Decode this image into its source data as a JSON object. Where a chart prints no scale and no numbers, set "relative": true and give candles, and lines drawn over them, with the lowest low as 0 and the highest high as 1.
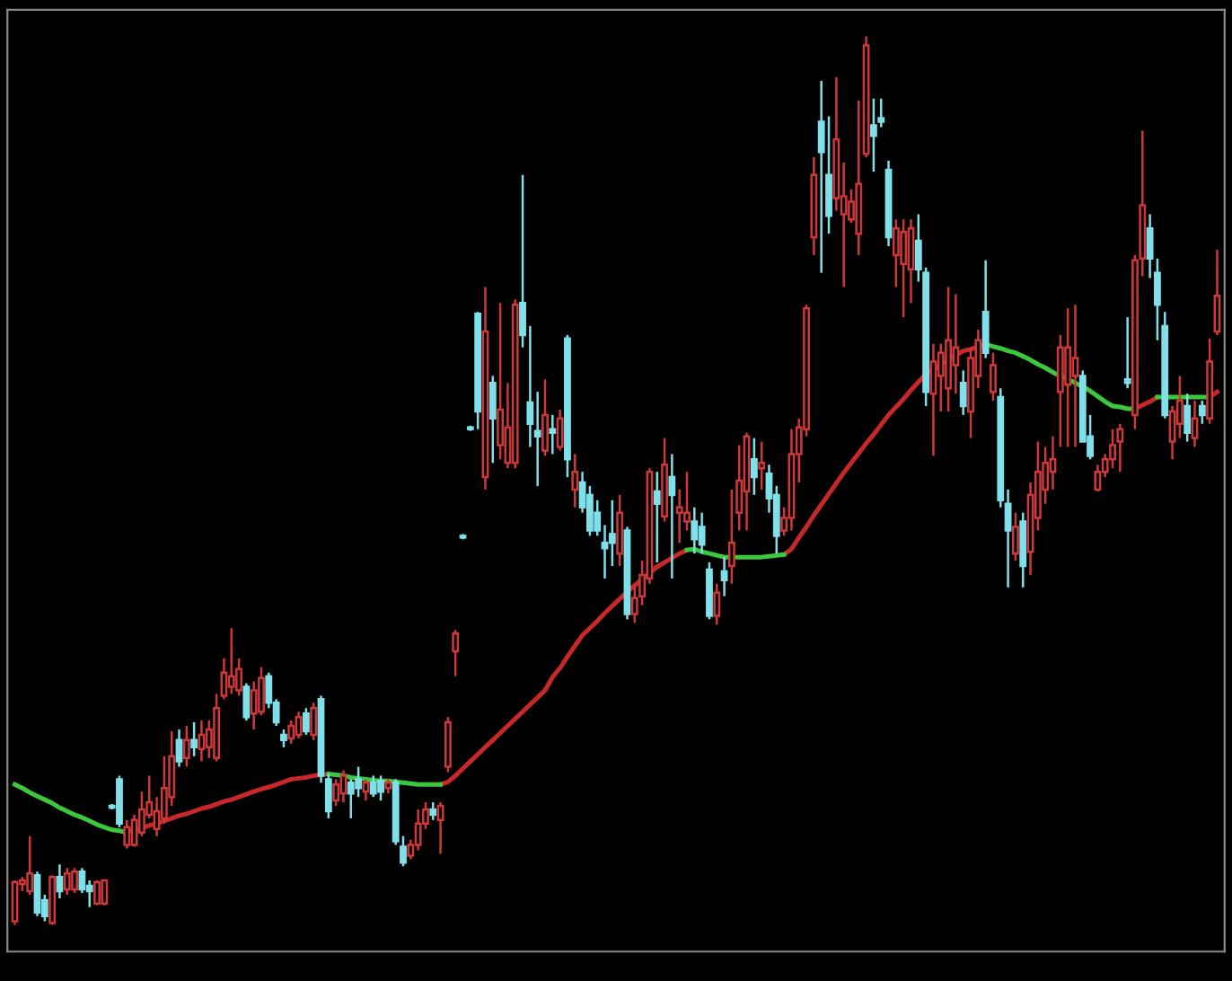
{
  "chart_data": {
    "type": "candlestick",
    "relative": true,
    "categories": [
      null,
      null,
      null,
      null,
      null,
      null,
      null,
      null,
      null,
      null,
      null,
      null,
      null,
      null,
      null,
      null,
      null,
      null,
      null,
      null,
      null,
      null,
      null,
      null,
      null,
      null,
      null,
      null,
      null,
      null,
      null,
      null,
      null,
      null,
      null,
      null,
      null,
      null,
      null,
      null,
      null,
      null,
      null,
      null,
      null,
      null,
      null,
      null,
      null,
      null,
      null,
      null,
      null,
      null,
      null,
      null,
      null,
      null,
      null,
      null,
      null,
      null,
      null,
      null,
      null,
      null,
      null,
      null,
      null,
      null,
      null,
      null,
      null,
      null,
      null,
      null,
      null,
      null,
      null,
      null,
      null,
      null,
      null,
      null,
      null,
      null,
      null,
      null,
      null,
      null,
      null,
      null,
      null,
      null,
      null,
      null,
      null,
      null,
      null,
      null,
      null,
      null,
      null,
      null,
      null,
      null,
      null,
      null,
      null,
      null,
      null,
      null,
      null,
      null,
      null,
      null,
      null,
      null,
      null,
      null,
      null,
      null,
      null,
      null,
      null,
      null,
      null,
      null,
      null,
      null,
      null,
      null,
      null,
      null,
      null,
      null,
      null,
      null,
      null,
      null,
      null,
      null,
      null,
      null,
      null,
      null,
      null,
      null,
      null,
      null,
      null,
      null,
      null,
      null,
      null,
      null,
      null,
      null,
      null,
      null,
      null,
      null
    ],
    "ohlc": [
      [
        0.004,
        0.05,
        0,
        0.048
      ],
      [
        0.046,
        0.054,
        0.038,
        0.05
      ],
      [
        0.038,
        0.1,
        0.034,
        0.058
      ],
      [
        0.056,
        0.06,
        0.01,
        0.014
      ],
      [
        0.028,
        0.034,
        0.004,
        0.01
      ],
      [
        0.002,
        0.056,
        0,
        0.054
      ],
      [
        0.054,
        0.068,
        0.03,
        0.038
      ],
      [
        0.04,
        0.064,
        0.034,
        0.058
      ],
      [
        0.04,
        0.064,
        0.036,
        0.06
      ],
      [
        0.06,
        0.064,
        0.036,
        0.04
      ],
      [
        0.044,
        0.05,
        0.02,
        0.038
      ],
      [
        0.024,
        0.05,
        0.022,
        0.048
      ],
      [
        0.024,
        0.05,
        0.022,
        0.05
      ],
      [
        0.134,
        0.136,
        0.13,
        0.132
      ],
      [
        0.164,
        0.168,
        0.11,
        0.114
      ],
      [
        0.09,
        0.118,
        0.086,
        0.11
      ],
      [
        0.09,
        0.124,
        0.088,
        0.118
      ],
      [
        0.104,
        0.15,
        0.1,
        0.13
      ],
      [
        0.124,
        0.168,
        0.12,
        0.138
      ],
      [
        0.108,
        0.144,
        0.1,
        0.128
      ],
      [
        0.12,
        0.19,
        0.114,
        0.154
      ],
      [
        0.144,
        0.218,
        0.134,
        0.19
      ],
      [
        0.208,
        0.22,
        0.178,
        0.184
      ],
      [
        0.188,
        0.224,
        0.178,
        0.208
      ],
      [
        0.208,
        0.228,
        0.19,
        0.2
      ],
      [
        0.198,
        0.23,
        0.184,
        0.214
      ],
      [
        0.2,
        0.23,
        0.188,
        0.22
      ],
      [
        0.188,
        0.26,
        0.184,
        0.244
      ],
      [
        0.258,
        0.3,
        0.254,
        0.284
      ],
      [
        0.268,
        0.334,
        0.26,
        0.28
      ],
      [
        0.264,
        0.3,
        0.258,
        0.288
      ],
      [
        0.268,
        0.272,
        0.23,
        0.234
      ],
      [
        0.238,
        0.274,
        0.22,
        0.264
      ],
      [
        0.24,
        0.29,
        0.236,
        0.278
      ],
      [
        0.28,
        0.284,
        0.244,
        0.25
      ],
      [
        0.25,
        0.254,
        0.224,
        0.228
      ],
      [
        0.214,
        0.22,
        0.2,
        0.208
      ],
      [
        0.21,
        0.23,
        0.204,
        0.224
      ],
      [
        0.214,
        0.24,
        0.21,
        0.234
      ],
      [
        0.238,
        0.244,
        0.214,
        0.218
      ],
      [
        0.214,
        0.25,
        0.208,
        0.244
      ],
      [
        0.254,
        0.258,
        0.16,
        0.168
      ],
      [
        0.164,
        0.17,
        0.12,
        0.128
      ],
      [
        0.14,
        0.164,
        0.134,
        0.158
      ],
      [
        0.148,
        0.174,
        0.138,
        0.168
      ],
      [
        0.16,
        0.164,
        0.12,
        0.148
      ],
      [
        0.164,
        0.178,
        0.144,
        0.154
      ],
      [
        0.15,
        0.164,
        0.14,
        0.16
      ],
      [
        0.16,
        0.168,
        0.144,
        0.148
      ],
      [
        0.162,
        0.168,
        0.14,
        0.15
      ],
      [
        0.154,
        0.164,
        0.148,
        0.16
      ],
      [
        0.16,
        0.164,
        0.09,
        0.094
      ],
      [
        0.088,
        0.1,
        0.066,
        0.07
      ],
      [
        0.078,
        0.096,
        0.074,
        0.09
      ],
      [
        0.09,
        0.13,
        0.084,
        0.114
      ],
      [
        0.114,
        0.138,
        0.108,
        0.13
      ],
      [
        0.13,
        0.138,
        0.118,
        0.124
      ],
      [
        0.118,
        0.138,
        0.08,
        0.134
      ],
      [
        0.178,
        0.234,
        0.172,
        0.228
      ],
      [
        0.308,
        0.332,
        0.28,
        0.328
      ],
      [
        0.438,
        0.44,
        0.434,
        0.436
      ],
      [
        0.56,
        0.562,
        0.556,
        0.558
      ],
      [
        0.688,
        0.69,
        0.558,
        0.578
      ],
      [
        0.504,
        0.718,
        0.49,
        0.668
      ],
      [
        0.61,
        0.618,
        0.52,
        0.57
      ],
      [
        0.54,
        0.7,
        0.524,
        0.58
      ],
      [
        0.52,
        0.61,
        0.514,
        0.56
      ],
      [
        0.52,
        0.704,
        0.514,
        0.698
      ],
      [
        0.7,
        0.844,
        0.65,
        0.664
      ],
      [
        0.588,
        0.674,
        0.538,
        0.564
      ],
      [
        0.556,
        0.6,
        0.494,
        0.55
      ],
      [
        0.534,
        0.614,
        0.528,
        0.574
      ],
      [
        0.558,
        0.574,
        0.53,
        0.554
      ],
      [
        0.538,
        0.58,
        0.534,
        0.57
      ],
      [
        0.66,
        0.664,
        0.504,
        0.524
      ],
      [
        0.49,
        0.53,
        0.47,
        0.51
      ],
      [
        0.498,
        0.51,
        0.464,
        0.47
      ],
      [
        0.484,
        0.494,
        0.438,
        0.444
      ],
      [
        0.464,
        0.478,
        0.438,
        0.444
      ],
      [
        0.43,
        0.45,
        0.39,
        0.424
      ],
      [
        0.44,
        0.478,
        0.404,
        0.43
      ],
      [
        0.418,
        0.484,
        0.404,
        0.464
      ],
      [
        0.444,
        0.448,
        0.344,
        0.35
      ],
      [
        0.35,
        0.38,
        0.34,
        0.368
      ],
      [
        0.37,
        0.41,
        0.36,
        0.394
      ],
      [
        0.39,
        0.514,
        0.384,
        0.51
      ],
      [
        0.488,
        0.51,
        0.408,
        0.474
      ],
      [
        0.46,
        0.548,
        0.454,
        0.518
      ],
      [
        0.504,
        0.53,
        0.39,
        0.484
      ],
      [
        0.464,
        0.49,
        0.43,
        0.47
      ],
      [
        0.454,
        0.51,
        0.444,
        0.464
      ],
      [
        0.454,
        0.47,
        0.418,
        0.434
      ],
      [
        0.448,
        0.464,
        0.418,
        0.428
      ],
      [
        0.4,
        0.408,
        0.344,
        0.348
      ],
      [
        0.348,
        0.384,
        0.338,
        0.374
      ],
      [
        0.398,
        0.414,
        0.37,
        0.388
      ],
      [
        0.404,
        0.49,
        0.384,
        0.43
      ],
      [
        0.464,
        0.54,
        0.444,
        0.5
      ],
      [
        0.488,
        0.554,
        0.444,
        0.55
      ],
      [
        0.524,
        0.548,
        0.484,
        0.504
      ],
      [
        0.514,
        0.544,
        0.49,
        0.52
      ],
      [
        0.508,
        0.518,
        0.464,
        0.48
      ],
      [
        0.484,
        0.494,
        0.418,
        0.438
      ],
      [
        0.444,
        0.47,
        0.438,
        0.458
      ],
      [
        0.458,
        0.558,
        0.444,
        0.53
      ],
      [
        0.53,
        0.57,
        0.498,
        0.56
      ],
      [
        0.558,
        0.698,
        0.55,
        0.694
      ],
      [
        0.774,
        0.864,
        0.754,
        0.844
      ],
      [
        0.904,
        0.95,
        0.734,
        0.87
      ],
      [
        0.844,
        0.91,
        0.778,
        0.798
      ],
      [
        0.818,
        0.954,
        0.804,
        0.884
      ],
      [
        0.8,
        0.858,
        0.718,
        0.82
      ],
      [
        0.794,
        0.828,
        0.79,
        0.814
      ],
      [
        0.778,
        0.928,
        0.754,
        0.834
      ],
      [
        0.868,
        1.0,
        0.864,
        0.99
      ],
      [
        0.9,
        0.93,
        0.848,
        0.888
      ],
      [
        0.908,
        0.93,
        0.898,
        0.904
      ],
      [
        0.85,
        0.86,
        0.764,
        0.774
      ],
      [
        0.754,
        0.794,
        0.718,
        0.784
      ],
      [
        0.744,
        0.794,
        0.684,
        0.78
      ],
      [
        0.738,
        0.794,
        0.7,
        0.784
      ],
      [
        0.77,
        0.8,
        0.724,
        0.738
      ],
      [
        0.734,
        0.74,
        0.584,
        0.6
      ],
      [
        0.598,
        0.654,
        0.528,
        0.634
      ],
      [
        0.618,
        0.654,
        0.578,
        0.644
      ],
      [
        0.604,
        0.718,
        0.578,
        0.658
      ],
      [
        0.63,
        0.71,
        0.598,
        0.65
      ],
      [
        0.61,
        0.624,
        0.574,
        0.584
      ],
      [
        0.578,
        0.65,
        0.548,
        0.638
      ],
      [
        0.618,
        0.67,
        0.604,
        0.658
      ],
      [
        0.69,
        0.748,
        0.638,
        0.644
      ],
      [
        0.6,
        0.644,
        0.59,
        0.63
      ],
      [
        0.594,
        0.604,
        0.47,
        0.478
      ],
      [
        0.474,
        0.49,
        0.38,
        0.444
      ],
      [
        0.418,
        0.464,
        0.41,
        0.448
      ],
      [
        0.454,
        0.464,
        0.38,
        0.404
      ],
      [
        0.42,
        0.498,
        0.394,
        0.484
      ],
      [
        0.458,
        0.544,
        0.444,
        0.51
      ],
      [
        0.49,
        0.538,
        0.474,
        0.52
      ],
      [
        0.51,
        0.55,
        0.49,
        0.524
      ],
      [
        0.6,
        0.664,
        0.538,
        0.65
      ],
      [
        0.608,
        0.694,
        0.538,
        0.65
      ],
      [
        0.618,
        0.698,
        0.538,
        0.638
      ],
      [
        0.618,
        0.624,
        0.544,
        0.544
      ],
      [
        0.55,
        0.574,
        0.524,
        0.528
      ],
      [
        0.49,
        0.518,
        0.488,
        0.51
      ],
      [
        0.51,
        0.53,
        0.504,
        0.524
      ],
      [
        0.524,
        0.558,
        0.514,
        0.54
      ],
      [
        0.544,
        0.564,
        0.51,
        0.558
      ],
      [
        0.614,
        0.684,
        0.604,
        0.61
      ],
      [
        0.574,
        0.754,
        0.558,
        0.748
      ],
      [
        0.75,
        0.894,
        0.73,
        0.81
      ],
      [
        0.784,
        0.8,
        0.728,
        0.75
      ],
      [
        0.734,
        0.75,
        0.658,
        0.698
      ],
      [
        0.674,
        0.69,
        0.57,
        0.574
      ],
      [
        0.544,
        0.584,
        0.524,
        0.578
      ],
      [
        0.564,
        0.618,
        0.548,
        0.59
      ],
      [
        0.584,
        0.598,
        0.544,
        0.554
      ],
      [
        0.548,
        0.59,
        0.538,
        0.57
      ],
      [
        0.584,
        0.59,
        0.564,
        0.574
      ],
      [
        0.57,
        0.66,
        0.564,
        0.634
      ],
      [
        0.668,
        0.76,
        0.664,
        0.708
      ]
    ],
    "colors": [
      "#d03838",
      "#d03838",
      "#d03838",
      "#7fe0ea",
      "#7fe0ea",
      "#d03838",
      "#7fe0ea",
      "#d03838",
      "#d03838",
      "#7fe0ea",
      "#7fe0ea",
      "#d03838",
      "#d03838",
      "#7fe0ea",
      "#7fe0ea",
      "#d03838",
      "#d03838",
      "#d03838",
      "#d03838",
      "#d03838",
      "#d03838",
      "#d03838",
      "#7fe0ea",
      "#d03838",
      "#7fe0ea",
      "#d03838",
      "#d03838",
      "#d03838",
      "#d03838",
      "#d03838",
      "#d03838",
      "#7fe0ea",
      "#d03838",
      "#d03838",
      "#7fe0ea",
      "#7fe0ea",
      "#7fe0ea",
      "#d03838",
      "#d03838",
      "#7fe0ea",
      "#d03838",
      "#7fe0ea",
      "#7fe0ea",
      "#d03838",
      "#d03838",
      "#7fe0ea",
      "#7fe0ea",
      "#d03838",
      "#7fe0ea",
      "#7fe0ea",
      "#d03838",
      "#7fe0ea",
      "#7fe0ea",
      "#d03838",
      "#d03838",
      "#d03838",
      "#7fe0ea",
      "#d03838",
      "#d03838",
      "#d03838",
      "#7fe0ea",
      "#7fe0ea",
      "#7fe0ea",
      "#d03838",
      "#7fe0ea",
      "#d03838",
      "#d03838",
      "#d03838",
      "#7fe0ea",
      "#7fe0ea",
      "#7fe0ea",
      "#d03838",
      "#7fe0ea",
      "#d03838",
      "#7fe0ea",
      "#d03838",
      "#7fe0ea",
      "#7fe0ea",
      "#7fe0ea",
      "#7fe0ea",
      "#7fe0ea",
      "#d03838",
      "#7fe0ea",
      "#d03838",
      "#d03838",
      "#d03838",
      "#7fe0ea",
      "#d03838",
      "#7fe0ea",
      "#d03838",
      "#d03838",
      "#7fe0ea",
      "#7fe0ea",
      "#7fe0ea",
      "#d03838",
      "#7fe0ea",
      "#d03838",
      "#d03838",
      "#d03838",
      "#7fe0ea",
      "#d03838",
      "#7fe0ea",
      "#7fe0ea",
      "#d03838",
      "#d03838",
      "#d03838",
      "#d03838",
      "#d03838",
      "#7fe0ea",
      "#7fe0ea",
      "#d03838",
      "#d03838",
      "#d03838",
      "#d03838",
      "#d03838",
      "#7fe0ea",
      "#7fe0ea",
      "#7fe0ea",
      "#d03838",
      "#d03838",
      "#d03838",
      "#7fe0ea",
      "#7fe0ea",
      "#d03838",
      "#d03838",
      "#d03838",
      "#d03838",
      "#7fe0ea",
      "#d03838",
      "#d03838",
      "#7fe0ea",
      "#d03838",
      "#7fe0ea",
      "#7fe0ea",
      "#d03838",
      "#7fe0ea",
      "#d03838",
      "#d03838",
      "#d03838",
      "#d03838",
      "#d03838",
      "#d03838",
      "#d03838",
      "#7fe0ea",
      "#7fe0ea",
      "#d03838",
      "#d03838",
      "#d03838",
      "#d03838",
      "#7fe0ea",
      "#d03838",
      "#d03838",
      "#7fe0ea",
      "#7fe0ea",
      "#7fe0ea",
      "#d03838",
      "#d03838",
      "#7fe0ea",
      "#d03838",
      "#7fe0ea",
      "#d03838",
      "#d03838"
    ],
    "series": [
      {
        "type": "line",
        "color": "#c82828",
        "values": [
          null,
          null,
          null,
          null,
          null,
          null,
          null,
          null,
          null,
          null,
          null,
          null,
          null,
          null,
          null,
          0.104,
          0.107,
          0.109,
          0.112,
          0.114,
          0.117,
          0.12,
          0.123,
          0.125,
          0.128,
          0.131,
          0.133,
          0.136,
          0.139,
          0.141,
          0.144,
          0.147,
          0.15,
          0.153,
          0.155,
          0.158,
          0.161,
          0.164,
          0.165,
          0.166,
          0.168,
          0.169,
          0.17,
          null,
          null,
          null,
          null,
          null,
          null,
          null,
          null,
          null,
          null,
          null,
          null,
          null,
          null,
          0.158,
          0.161,
          0.168,
          0.176,
          0.184,
          0.192,
          0.2,
          0.208,
          0.216,
          0.224,
          0.232,
          0.24,
          0.248,
          0.256,
          0.264,
          0.279,
          0.289,
          0.302,
          0.314,
          0.326,
          0.334,
          0.342,
          0.351,
          0.359,
          0.367,
          0.375,
          0.382,
          0.389,
          0.396,
          0.403,
          0.408,
          0.413,
          0.418,
          0.422,
          null,
          null,
          null,
          null,
          null,
          null,
          null,
          null,
          null,
          null,
          null,
          null,
          0.417,
          0.423,
          0.436,
          0.448,
          0.461,
          0.473,
          0.485,
          0.497,
          0.509,
          0.52,
          0.531,
          0.542,
          0.552,
          0.563,
          0.574,
          0.583,
          0.592,
          0.602,
          0.611,
          0.62,
          0.625,
          0.631,
          0.636,
          0.641,
          0.646,
          0.648,
          0.651,
          0.654,
          null,
          null,
          null,
          null,
          null,
          null,
          null,
          null,
          null,
          null,
          null,
          null,
          null,
          null,
          null,
          null,
          null,
          null,
          null,
          0.581,
          0.585,
          0.589,
          0.594,
          null,
          null,
          null,
          null,
          null,
          null,
          0.594,
          0.6
        ]
      },
      {
        "type": "line",
        "color": "#3cc83c",
        "values": [
          0.158,
          0.154,
          0.149,
          0.145,
          0.141,
          0.137,
          0.132,
          0.128,
          0.124,
          0.121,
          0.117,
          0.113,
          0.11,
          0.107,
          0.106,
          0.104,
          null,
          null,
          null,
          null,
          null,
          null,
          null,
          null,
          null,
          null,
          null,
          null,
          null,
          null,
          null,
          null,
          null,
          null,
          null,
          null,
          null,
          null,
          null,
          null,
          null,
          null,
          0.17,
          0.169,
          0.168,
          0.166,
          0.165,
          0.164,
          0.163,
          0.162,
          0.162,
          0.161,
          0.16,
          0.159,
          0.158,
          0.158,
          0.158,
          0.158,
          null,
          null,
          null,
          null,
          null,
          null,
          null,
          null,
          null,
          null,
          null,
          null,
          null,
          null,
          null,
          null,
          null,
          null,
          null,
          null,
          null,
          null,
          null,
          null,
          null,
          null,
          null,
          null,
          null,
          null,
          null,
          null,
          0.422,
          0.423,
          0.42,
          0.418,
          0.416,
          0.414,
          0.414,
          0.414,
          0.414,
          0.414,
          0.414,
          0.415,
          0.416,
          0.417,
          null,
          null,
          null,
          null,
          null,
          null,
          null,
          null,
          null,
          null,
          null,
          null,
          null,
          null,
          null,
          null,
          null,
          null,
          null,
          null,
          null,
          null,
          null,
          null,
          null,
          null,
          0.654,
          0.651,
          0.649,
          0.646,
          0.644,
          0.64,
          0.636,
          0.631,
          0.627,
          0.622,
          0.618,
          0.614,
          0.61,
          0.606,
          0.601,
          0.595,
          0.589,
          0.584,
          0.583,
          0.581,
          0.581,
          null,
          null,
          0.594,
          0.594,
          0.594,
          0.594,
          0.594,
          0.594,
          0.594,
          0.594,
          null
        ]
      }
    ]
  }
}
